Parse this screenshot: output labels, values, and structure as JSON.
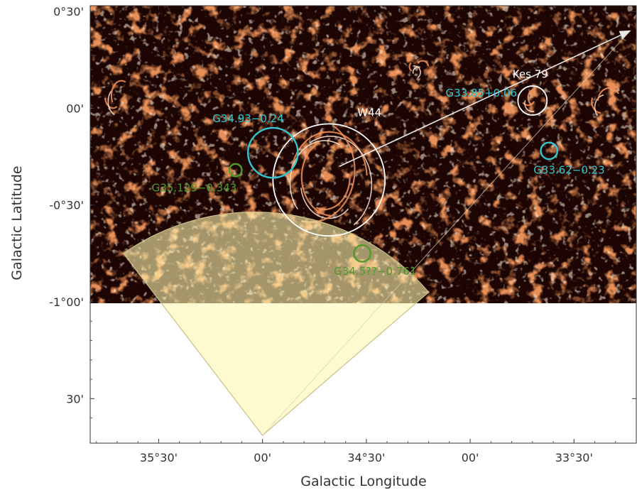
{
  "chart_data": {
    "type": "scatter",
    "description_label": "sky map",
    "xlabel": "Galactic Longitude",
    "ylabel": "Galactic Latitude",
    "x_ticks": [
      "35°30'",
      "00'",
      "34°30'",
      "00'",
      "33°30'"
    ],
    "y_ticks": [
      "0°30'",
      "00'",
      "-0°30'",
      "-1°00'",
      "30'"
    ],
    "x_tick_values": [
      35.5,
      35.0,
      34.5,
      34.0,
      33.5
    ],
    "y_tick_values": [
      0.5,
      0.0,
      -0.5,
      -1.0,
      -1.5
    ],
    "xlim": [
      35.83,
      33.2
    ],
    "ylim": [
      -1.73,
      0.53
    ],
    "image_extent_lat": [
      -1.0,
      0.53
    ],
    "sources": [
      {
        "name": "Kes 79",
        "l": 33.7,
        "b": 0.04,
        "r": 0.07,
        "color": "#ffffff"
      },
      {
        "name": "G33.85+0.06",
        "l": 33.74,
        "b": 0.05,
        "r": 0.0,
        "color": "#36c5cf"
      },
      {
        "name": "W44",
        "l": 34.68,
        "b": -0.37,
        "r": 0.27,
        "color": "#ffffff"
      },
      {
        "name": "G34.93−0.24",
        "l": 34.95,
        "b": -0.23,
        "r": 0.12,
        "color": "#36c5cf"
      },
      {
        "name": "G33.62−0.23",
        "l": 33.62,
        "b": -0.22,
        "r": 0.04,
        "color": "#36c5cf"
      },
      {
        "name": "G35.129−0.343",
        "l": 35.13,
        "b": -0.32,
        "r": 0.03,
        "color": "#4f9a2a"
      },
      {
        "name": "G34.5??−0.761",
        "l": 34.52,
        "b": -0.75,
        "r": 0.04,
        "color": "#4f9a2a"
      }
    ],
    "cone": {
      "apex": {
        "l": 35.0,
        "b": -1.69
      },
      "edge_left": {
        "l": 35.67,
        "b": -0.75
      },
      "edge_right": {
        "l": 34.2,
        "b": -0.95
      },
      "fill": "#fff5b0"
    },
    "arrow": {
      "from": {
        "l": 34.63,
        "b": -0.3
      },
      "to": {
        "l": 33.23,
        "b": 0.4
      },
      "color": "#e8e8e8"
    },
    "colors": {
      "background": "#1c0502",
      "emission_low": "#8a1606",
      "emission_mid": "#e2621f",
      "emission_high": "#ffffff",
      "axes": "#333333"
    }
  }
}
